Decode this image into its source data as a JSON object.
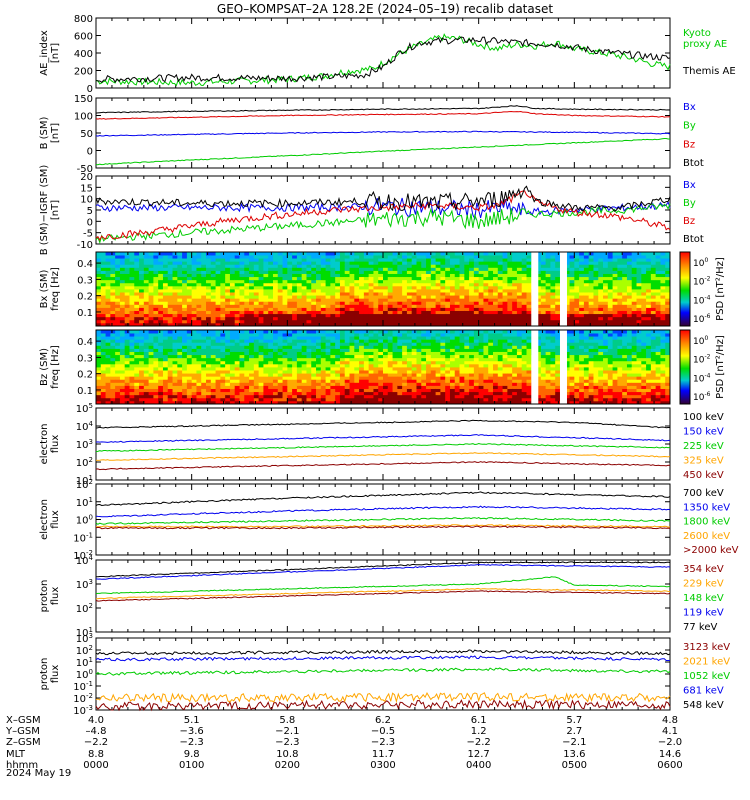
{
  "title": "GEO–KOMPSAT–2A 128.2E (2024–05–19) recalib dataset",
  "colors": {
    "black": "#000000",
    "blue": "#0000ee",
    "green": "#00cc00",
    "red": "#dd0000",
    "orange": "#ffa500",
    "darkred": "#8b0000",
    "aqua": "#00aa00"
  },
  "chart_data": [
    {
      "type": "line",
      "ylabel": "AE_index\n[nT]",
      "ylim": [
        0,
        800
      ],
      "yticks": [
        "800",
        "600",
        "400",
        "200",
        "0"
      ],
      "series": [
        {
          "name": "Kyoto\nproxy AE",
          "color": "#00cc00",
          "x": [
            0,
            0.5,
            1,
            1.5,
            1.8,
            2,
            2.2,
            2.4,
            2.6,
            2.9,
            3.1,
            3.3,
            3.45,
            3.6,
            3.8,
            4.0,
            4.2,
            4.4,
            4.6,
            4.8,
            5.0,
            5.3,
            5.6,
            5.8,
            6.0
          ],
          "values": [
            80,
            70,
            60,
            80,
            90,
            100,
            120,
            140,
            190,
            220,
            350,
            460,
            520,
            580,
            560,
            500,
            450,
            500,
            480,
            520,
            450,
            400,
            340,
            280,
            240
          ]
        },
        {
          "name": "Themis AE",
          "color": "#000000",
          "x": [
            0,
            0.5,
            1,
            1.5,
            2,
            2.5,
            2.8,
            3.0,
            3.2,
            3.4,
            3.6,
            4.0,
            4.4,
            4.8,
            5.2,
            5.6,
            6.0
          ],
          "values": [
            100,
            110,
            120,
            115,
            110,
            130,
            150,
            240,
            430,
            520,
            540,
            550,
            520,
            500,
            430,
            380,
            340
          ]
        }
      ]
    },
    {
      "type": "line",
      "ylabel": "B (SM)\n[nT]",
      "ylim": [
        -50,
        150
      ],
      "yticks": [
        "150",
        "100",
        "50",
        "0",
        "-50"
      ],
      "series": [
        {
          "name": "Bx",
          "color": "#0000ee",
          "x": [
            0,
            1,
            2,
            3,
            4,
            5,
            6
          ],
          "values": [
            42,
            46,
            50,
            53,
            54,
            52,
            48
          ]
        },
        {
          "name": "By",
          "color": "#00cc00",
          "x": [
            0,
            1,
            2,
            3,
            4,
            5,
            6
          ],
          "values": [
            -40,
            -27,
            -15,
            -2,
            10,
            22,
            34
          ]
        },
        {
          "name": "Bz",
          "color": "#dd0000",
          "x": [
            0,
            1,
            2,
            3,
            4,
            4.4,
            4.6,
            5,
            6
          ],
          "values": [
            90,
            95,
            100,
            103,
            105,
            112,
            105,
            100,
            96
          ]
        },
        {
          "name": "Btot",
          "color": "#000000",
          "x": [
            0,
            1,
            2,
            3,
            4,
            4.4,
            4.6,
            5,
            6
          ],
          "values": [
            108,
            112,
            115,
            118,
            120,
            128,
            120,
            118,
            116
          ]
        }
      ]
    },
    {
      "type": "line",
      "ylabel": "B (SM)−IGRF (SM)\n[nT]",
      "ylim": [
        -10,
        20
      ],
      "yticks": [
        "20",
        "15",
        "10",
        "5",
        "0",
        "-5",
        "-10"
      ],
      "series": [
        {
          "name": "Bx",
          "color": "#0000ee",
          "x": [
            0,
            1,
            2,
            3,
            3.5,
            4,
            4.3,
            4.5,
            5,
            5.5,
            6
          ],
          "values": [
            6,
            6,
            6,
            6.5,
            6,
            5,
            6,
            4,
            5,
            6,
            7
          ]
        },
        {
          "name": "By",
          "color": "#00cc00",
          "x": [
            0,
            1,
            2,
            3,
            3.5,
            4,
            4.3,
            4.5,
            5,
            5.5,
            6
          ],
          "values": [
            -8,
            -5,
            -2,
            1,
            2,
            0,
            2,
            3,
            4,
            5,
            7
          ]
        },
        {
          "name": "Bz",
          "color": "#dd0000",
          "x": [
            0,
            0.5,
            1,
            1.5,
            2,
            2.5,
            3,
            3.5,
            4,
            4.2,
            4.4,
            4.5,
            4.6,
            4.8,
            5,
            5.3,
            5.6,
            6
          ],
          "values": [
            -7,
            -5,
            -2,
            1,
            3,
            5,
            6,
            7,
            6,
            7,
            11,
            13,
            8,
            6,
            4,
            3,
            1,
            -3
          ]
        },
        {
          "name": "Btot",
          "color": "#000000",
          "x": [
            0,
            1,
            2,
            3,
            3.5,
            4,
            4.2,
            4.4,
            4.5,
            4.6,
            5,
            5.5,
            6
          ],
          "values": [
            9,
            8,
            8,
            9,
            8,
            9,
            10,
            13,
            15,
            9,
            6,
            6,
            10
          ]
        }
      ]
    },
    {
      "type": "heatmap",
      "ylabel": "Bx (SM)\nfreq [Hz]",
      "yticks": [
        "0.4",
        "0.3",
        "0.2",
        "0.1"
      ],
      "cbar_label": "PSD [nT²/Hz]",
      "cbar_ticks": [
        "10^0",
        "10^-2",
        "10^-4",
        "10^-6"
      ]
    },
    {
      "type": "heatmap",
      "ylabel": "Bz (SM)\nfreq [Hz]",
      "yticks": [
        "0.4",
        "0.3",
        "0.2",
        "0.1"
      ],
      "cbar_label": "PSD [nT²/Hz]",
      "cbar_ticks": [
        "10^0",
        "10^-2",
        "10^-4",
        "10^-6"
      ]
    },
    {
      "type": "line",
      "ylabel": "electron\nflux",
      "ylog": [
        1,
        5
      ],
      "yticks": [
        "10^5",
        "10^4",
        "10^3",
        "10^2",
        "10^1"
      ],
      "series": [
        {
          "name": "100 keV",
          "color": "#000000",
          "x": [
            0,
            2,
            4,
            5,
            6
          ],
          "log10": [
            3.9,
            4.1,
            4.3,
            4.2,
            3.9
          ]
        },
        {
          "name": "150 keV",
          "color": "#0000ee",
          "x": [
            0,
            2,
            4,
            6
          ],
          "log10": [
            3.1,
            3.3,
            3.5,
            3.2
          ]
        },
        {
          "name": "225 keV",
          "color": "#00cc00",
          "x": [
            0,
            2,
            4,
            6
          ],
          "log10": [
            2.6,
            2.8,
            3.0,
            2.8
          ]
        },
        {
          "name": "325 keV",
          "color": "#ffa500",
          "x": [
            0,
            2,
            4,
            6
          ],
          "log10": [
            2.1,
            2.3,
            2.5,
            2.3
          ]
        },
        {
          "name": "450 keV",
          "color": "#8b0000",
          "x": [
            0,
            2,
            4,
            6
          ],
          "log10": [
            1.6,
            1.8,
            2.0,
            1.8
          ]
        }
      ]
    },
    {
      "type": "line",
      "ylabel": "electron\nflux",
      "ylog": [
        -3,
        2
      ],
      "yticks": [
        "10^2",
        "10^1",
        "10^0",
        "10^-1",
        "10^-2"
      ],
      "series": [
        {
          "name": "700 keV",
          "color": "#000000",
          "x": [
            0,
            2,
            4,
            6
          ],
          "log10": [
            0.5,
            1.0,
            1.4,
            1.1
          ]
        },
        {
          "name": "1350 keV",
          "color": "#0000ee",
          "x": [
            0,
            2,
            4,
            6
          ],
          "log10": [
            -0.3,
            0.1,
            0.4,
            0.2
          ]
        },
        {
          "name": "1800 keV",
          "color": "#00cc00",
          "x": [
            0,
            2,
            4,
            6
          ],
          "log10": [
            -0.8,
            -0.6,
            -0.4,
            -0.6
          ]
        },
        {
          "name": "2600 keV",
          "color": "#ffa500",
          "x": [
            0,
            2,
            4,
            6
          ],
          "log10": [
            -1.0,
            -1.0,
            -0.9,
            -1.0
          ]
        },
        {
          "name": ">2000 keV",
          "color": "#8b0000",
          "x": [
            0,
            2,
            4,
            6
          ],
          "log10": [
            -1.1,
            -1.1,
            -1.0,
            -1.1
          ]
        }
      ]
    },
    {
      "type": "line",
      "ylabel": "proton\nflux",
      "ylog": [
        1,
        4
      ],
      "yticks": [
        "10^4",
        "10^3",
        "10^2",
        "10^1"
      ],
      "series": [
        {
          "name": "354 keV",
          "color": "#8b0000",
          "x": [
            0,
            2,
            4,
            6
          ],
          "log10": [
            2.3,
            2.5,
            2.7,
            2.6
          ]
        },
        {
          "name": "229 keV",
          "color": "#ffa500",
          "x": [
            0,
            2,
            4,
            6
          ],
          "log10": [
            2.4,
            2.6,
            2.8,
            2.7
          ]
        },
        {
          "name": "148 keV",
          "color": "#00cc00",
          "x": [
            0,
            2,
            4,
            4.8,
            5,
            6
          ],
          "log10": [
            2.6,
            2.8,
            3.0,
            3.3,
            2.95,
            2.9
          ]
        },
        {
          "name": "119 keV",
          "color": "#0000ee",
          "x": [
            0,
            2,
            4,
            6
          ],
          "log10": [
            3.2,
            3.5,
            3.8,
            3.7
          ]
        },
        {
          "name": "77 keV",
          "color": "#000000",
          "x": [
            0,
            2,
            4,
            6
          ],
          "log10": [
            3.3,
            3.6,
            3.9,
            3.9
          ]
        }
      ]
    },
    {
      "type": "line",
      "ylabel": "proton\nflux",
      "ylog": [
        -3,
        3
      ],
      "yticks": [
        "10^3",
        "10^2",
        "10^1",
        "10^0",
        "10^-1",
        "10^-2",
        "10^-3"
      ],
      "series": [
        {
          "name": "3123 keV",
          "color": "#8b0000",
          "x": [
            0,
            2,
            4,
            6
          ],
          "log10": [
            -2.7,
            -2.6,
            -2.5,
            -2.6
          ]
        },
        {
          "name": "2021 keV",
          "color": "#ffa500",
          "x": [
            0,
            2,
            4,
            6
          ],
          "log10": [
            -2.0,
            -2.0,
            -1.9,
            -2.0
          ]
        },
        {
          "name": "1052 keV",
          "color": "#00cc00",
          "x": [
            0,
            2,
            4,
            6
          ],
          "log10": [
            0.0,
            0.2,
            0.4,
            0.2
          ]
        },
        {
          "name": "681 keV",
          "color": "#0000ee",
          "x": [
            0,
            2,
            4,
            6
          ],
          "log10": [
            1.2,
            1.3,
            1.4,
            1.2
          ]
        },
        {
          "name": "548 keV",
          "color": "#000000",
          "x": [
            0,
            2,
            4,
            6
          ],
          "log10": [
            1.7,
            1.8,
            1.9,
            1.7
          ]
        }
      ]
    }
  ],
  "footer": {
    "row_labels": [
      "X–GSM",
      "Y–GSM",
      "Z–GSM",
      "MLT",
      "hhmm",
      "2024 May 19"
    ],
    "columns": [
      {
        "x": "4.0",
        "y": "–4.8",
        "z": "−2.2",
        "mlt": "8.8",
        "hhmm": "0000"
      },
      {
        "x": "5.1",
        "y": "−3.6",
        "z": "−2.3",
        "mlt": "9.8",
        "hhmm": "0100"
      },
      {
        "x": "5.8",
        "y": "−2.1",
        "z": "−2.3",
        "mlt": "10.8",
        "hhmm": "0200"
      },
      {
        "x": "6.2",
        "y": "−0.5",
        "z": "−2.3",
        "mlt": "11.7",
        "hhmm": "0300"
      },
      {
        "x": "6.1",
        "y": "1.2",
        "z": "−2.2",
        "mlt": "12.7",
        "hhmm": "0400"
      },
      {
        "x": "5.7",
        "y": "2.7",
        "z": "−2.1",
        "mlt": "13.6",
        "hhmm": "0500"
      },
      {
        "x": "4.8",
        "y": "4.1",
        "z": "−2.0",
        "mlt": "14.6",
        "hhmm": "0600"
      }
    ]
  }
}
